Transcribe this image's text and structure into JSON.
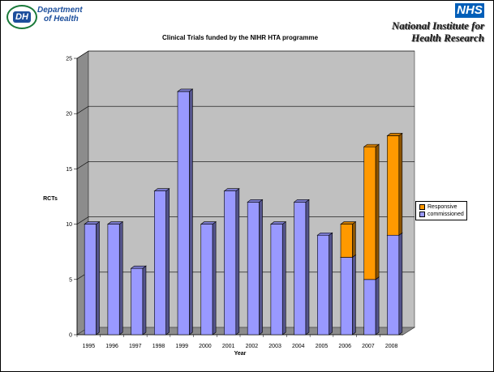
{
  "header": {
    "dh_logo_mark": "DH",
    "dh_logo_text": [
      "Department",
      "of Health"
    ],
    "nhs_logo": "NHS",
    "nihr_text": [
      "National Institute for",
      "Health Research"
    ]
  },
  "chart_data": {
    "type": "bar",
    "stacked": true,
    "three_d": true,
    "title": "Clinical Trials funded by the NIHR HTA programme",
    "xlabel": "Year",
    "ylabel": "RCTs",
    "ylim": [
      0,
      25
    ],
    "yticks": [
      0,
      5,
      10,
      15,
      20,
      25
    ],
    "grid": true,
    "legend_position": "right",
    "categories": [
      "1995",
      "1996",
      "1997",
      "1998",
      "1999",
      "2000",
      "2001",
      "2002",
      "2003",
      "2004",
      "2005",
      "2006",
      "2007",
      "2008"
    ],
    "series": [
      {
        "name": "commissioned",
        "color": "#9999ff",
        "values": [
          10,
          10,
          6,
          13,
          22,
          10,
          13,
          12,
          10,
          12,
          9,
          7,
          5,
          9
        ]
      },
      {
        "name": "Responsive",
        "color": "#ff9900",
        "values": [
          0,
          0,
          0,
          0,
          0,
          0,
          0,
          0,
          0,
          0,
          0,
          3,
          12,
          9
        ]
      }
    ],
    "legend_order": [
      "Responsive",
      "commissioned"
    ]
  }
}
